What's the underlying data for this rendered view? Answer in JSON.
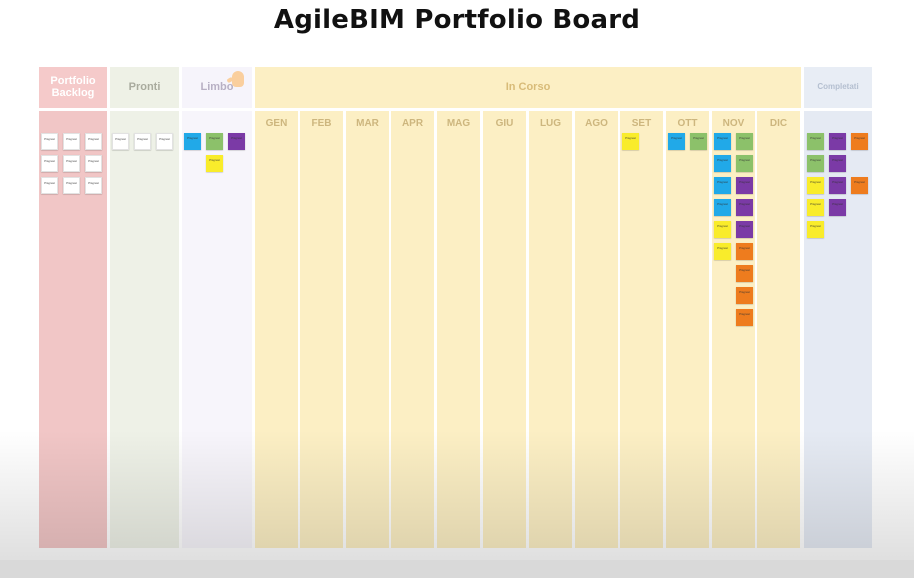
{
  "board": {
    "title": "AgileBIM Portfolio Board",
    "headers": {
      "portfolio": "Portfolio Backlog",
      "pronti": "Pronti",
      "limbo": "Limbo",
      "in_corso": "In Corso",
      "completati": "Completati"
    },
    "months": [
      "GEN",
      "FEB",
      "MAR",
      "APR",
      "MAG",
      "GIU",
      "LUG",
      "AGO",
      "SET",
      "OTT",
      "NOV",
      "DIC"
    ],
    "note_label": "Prog test",
    "colors": {
      "white": "#ffffff",
      "blue": "#21a9e8",
      "green": "#8cc16a",
      "purple": "#7b3aa6",
      "yellow": "#f9ec2b",
      "orange": "#ee7c1e"
    }
  }
}
